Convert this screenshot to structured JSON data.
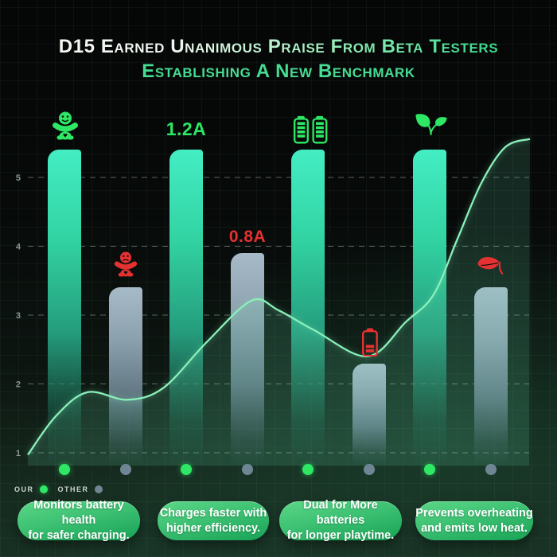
{
  "title": {
    "line1": "D15 Earned Unanimous Praise From Beta Testers",
    "line2": "Establishing A New Benchmark"
  },
  "colors": {
    "our_bar_top": "#44edc3",
    "other_bar_top": "#a7bac7",
    "our_dot": "#2ee765",
    "other_dot": "#6e8694",
    "accent_green": "#2be763",
    "accent_red": "#e53131",
    "trend_line": "#8af0ba",
    "pill_green": "#3dc173"
  },
  "chart_data": {
    "type": "bar",
    "title": "",
    "categories": [
      "battery-health",
      "charging-current",
      "battery-capacity",
      "heat-emission"
    ],
    "series": [
      {
        "name": "OUR",
        "values": [
          5.4,
          5.4,
          5.4,
          5.4
        ]
      },
      {
        "name": "OTHER",
        "values": [
          3.4,
          3.9,
          2.3,
          3.4
        ]
      }
    ],
    "yticks": [
      1,
      2,
      3,
      4,
      5
    ],
    "ylim": [
      1,
      5.5
    ],
    "grid": "dashed-horizontal",
    "legend_position": "bottom-left",
    "annotations": {
      "our_current": "1.2A",
      "other_current": "0.8A",
      "icons": [
        "happy-baby-icon",
        "sad-baby-icon",
        "dual-battery-icon",
        "low-battery-icon",
        "leaves-icon",
        "wilted-leaf-icon"
      ]
    },
    "trend": {
      "comment": "smooth line overlay, points as [x_px, axis_value]",
      "points": [
        [
          35,
          0.97
        ],
        [
          70,
          1.53
        ],
        [
          110,
          1.88
        ],
        [
          160,
          1.77
        ],
        [
          205,
          1.94
        ],
        [
          260,
          2.61
        ],
        [
          316,
          3.21
        ],
        [
          350,
          3.07
        ],
        [
          395,
          2.78
        ],
        [
          462,
          2.4
        ],
        [
          510,
          2.9
        ],
        [
          545,
          3.3
        ],
        [
          575,
          4.11
        ],
        [
          605,
          4.92
        ],
        [
          635,
          5.44
        ],
        [
          666,
          5.56
        ]
      ]
    }
  },
  "legend": {
    "our_label": "OUR",
    "other_label": "OTHER"
  },
  "pills": [
    {
      "line1": "Monitors battery health",
      "line2": "for safer charging."
    },
    {
      "line1": "Charges faster with",
      "line2": "higher efficiency."
    },
    {
      "line1": "Dual for More batteries",
      "line2": "for longer playtime."
    },
    {
      "line1": "Prevents overheating",
      "line2": "and emits low heat."
    }
  ]
}
